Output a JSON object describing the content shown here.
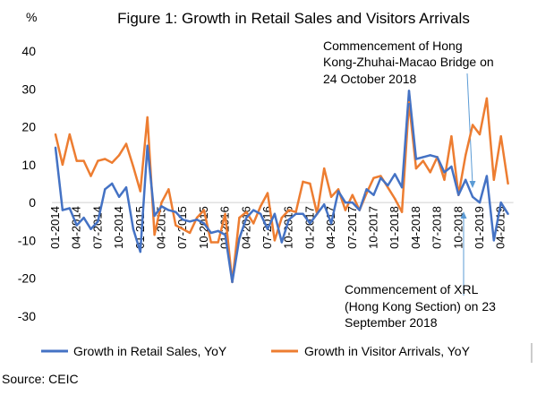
{
  "chart_data": {
    "type": "line",
    "title": "Figure 1: Growth in Retail Sales and Visitors Arrivals",
    "ylabel": "%",
    "xlabel": "",
    "ylim": [
      -30,
      40
    ],
    "yticks": [
      "40",
      "30",
      "20",
      "10",
      "0",
      "-10",
      "-20",
      "-30"
    ],
    "grid": false,
    "legend_position": "bottom",
    "x_tick_labels": [
      "01-2014",
      "04-2014",
      "07-2014",
      "10-2014",
      "01-2015",
      "04-2015",
      "07-2015",
      "10-2015",
      "01-2016",
      "04-2016",
      "07-2016",
      "10-2016",
      "01-2017",
      "04-2017",
      "07-2017",
      "10-2017",
      "01-2018",
      "04-2018",
      "07-2018",
      "10-2018",
      "01-2019",
      "04-2019"
    ],
    "colors": {
      "retail": "#4472C4",
      "visitors": "#ED7D31"
    },
    "series": [
      {
        "name": "Growth in Retail Sales, YoY",
        "color": "#4472C4",
        "values": [
          14.5,
          -2,
          -1.5,
          -6,
          -4,
          -7,
          -5,
          3.5,
          5,
          1.5,
          4,
          -7,
          -13,
          15,
          -3.5,
          -1,
          -2,
          -2.5,
          -4.5,
          -5,
          -4.5,
          -5.5,
          -8,
          -7.5,
          -8.5,
          -21,
          -9.5,
          -4,
          -2,
          -3,
          -7,
          -3,
          -10.5,
          -4.5,
          -3,
          -3,
          -5.5,
          -3,
          -0.5,
          -5.5,
          3,
          0,
          0,
          -2,
          3.5,
          2,
          6.5,
          4.5,
          7.5,
          4,
          29.5,
          11.5,
          12,
          12.5,
          12,
          8,
          9.5,
          2,
          6,
          1.5,
          0,
          7,
          -10,
          0,
          -3
        ]
      },
      {
        "name": "Growth in Visitor Arrivals, YoY",
        "color": "#ED7D31",
        "values": [
          18,
          10,
          18,
          11,
          11,
          7,
          11,
          11.5,
          10.5,
          12.5,
          15.5,
          9.5,
          3,
          22.5,
          -8.5,
          0,
          3.5,
          -6,
          -7,
          -8,
          -4,
          -2,
          -10.5,
          -10.5,
          -3,
          -21,
          -4,
          -2.5,
          -5.5,
          -1,
          2.5,
          -10,
          -4,
          -2,
          -2.5,
          5.5,
          5,
          -3,
          9,
          1.5,
          3.5,
          -2,
          2,
          -2,
          2.5,
          6.5,
          7,
          4,
          1,
          -2.5,
          26.5,
          9,
          11,
          8,
          12,
          6,
          17.5,
          2,
          12.5,
          20.5,
          18,
          27.5,
          6,
          17.5,
          5
        ]
      }
    ],
    "annotations": {
      "hzmb_1": "Commencement of Hong",
      "hzmb_2": "Kong-Zhuhai-Macao Bridge on",
      "hzmb_3": "24 October 2018",
      "xrl_1": "Commencement of XRL",
      "xrl_2": "(Hong Kong Section) on 23",
      "xrl_3": "September 2018"
    }
  },
  "source": "Source: CEIC"
}
